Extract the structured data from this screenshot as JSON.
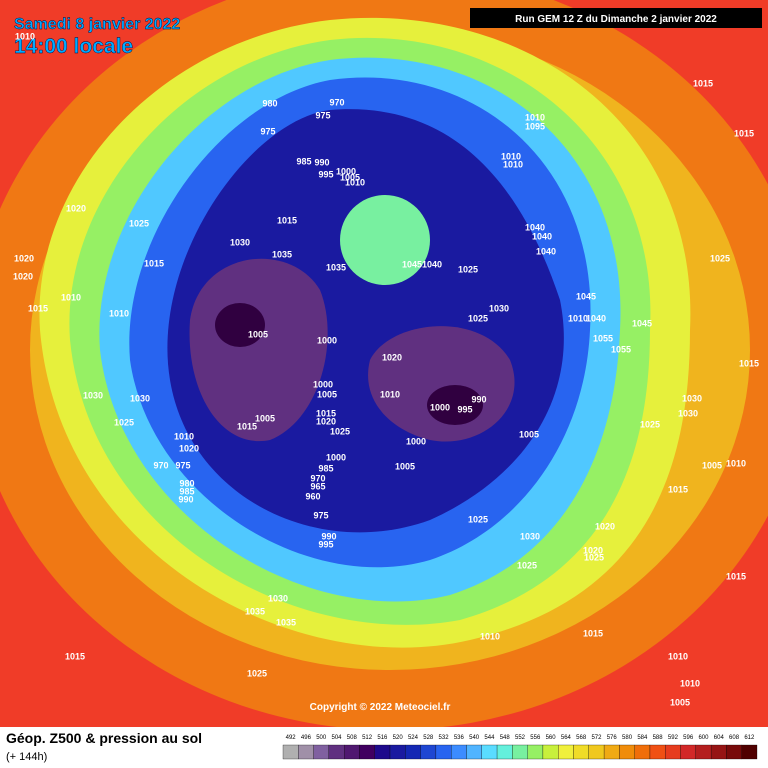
{
  "header": {
    "date": "Samedi 8 janvier 2022",
    "time": "14:00 locale",
    "run": "Run GEM 12 Z du Dimanche 2 janvier 2022"
  },
  "map": {
    "isobar_labels": [
      "1010",
      "980",
      "970",
      "975",
      "975",
      "985",
      "990",
      "995",
      "1000",
      "1005",
      "1010",
      "1010",
      "1095",
      "1010",
      "1010",
      "1015",
      "1015",
      "1020",
      "1025",
      "1015",
      "1030",
      "1035",
      "1035",
      "1045",
      "1040",
      "1025",
      "1040",
      "1040",
      "1040",
      "1025",
      "1020",
      "1015",
      "1020",
      "1010",
      "1015",
      "1010",
      "1045",
      "1030",
      "1025",
      "1010",
      "1040",
      "1045",
      "1055",
      "1055",
      "1005",
      "1000",
      "1020",
      "1015",
      "1000",
      "1005",
      "1010",
      "1000",
      "995",
      "990",
      "1030",
      "1030",
      "1030",
      "1030",
      "1015",
      "1020",
      "1005",
      "1015",
      "1025",
      "1025",
      "1025",
      "1000",
      "1005",
      "1010",
      "1020",
      "1000",
      "985",
      "1005",
      "1005",
      "1010",
      "975",
      "970",
      "980",
      "985",
      "990",
      "1015",
      "970",
      "965",
      "960",
      "975",
      "1025",
      "1020",
      "1030",
      "990",
      "995",
      "1020",
      "1025",
      "1025",
      "1015",
      "1030",
      "1035",
      "1035",
      "1010",
      "1015",
      "1015",
      "1010",
      "1010",
      "1025",
      "1005"
    ],
    "copyright": "Copyright © 2022 Meteociel.fr"
  },
  "footer": {
    "title": "Géop. Z500 & pression au sol",
    "lead": "(+ 144h)"
  },
  "legend": {
    "values": [
      492,
      496,
      500,
      504,
      508,
      512,
      516,
      520,
      524,
      528,
      532,
      536,
      540,
      544,
      548,
      552,
      556,
      560,
      564,
      568,
      572,
      576,
      580,
      584,
      588,
      592,
      596,
      600,
      604,
      608,
      612
    ],
    "colors": [
      "#b0b0b0",
      "#a090a8",
      "#8060a0",
      "#603080",
      "#501870",
      "#400060",
      "#1e0a8c",
      "#1a1aa0",
      "#1428b4",
      "#1e46d2",
      "#2864f0",
      "#3c8cff",
      "#50b4ff",
      "#5adcff",
      "#64f0dc",
      "#78f0a0",
      "#96f064",
      "#c8f03c",
      "#f0f03c",
      "#f0dc28",
      "#f0c81e",
      "#f0aa14",
      "#f08c0a",
      "#f06e0a",
      "#f05014",
      "#e63c1e",
      "#d22828",
      "#b41e1e",
      "#961414",
      "#780a0a",
      "#500000"
    ]
  }
}
